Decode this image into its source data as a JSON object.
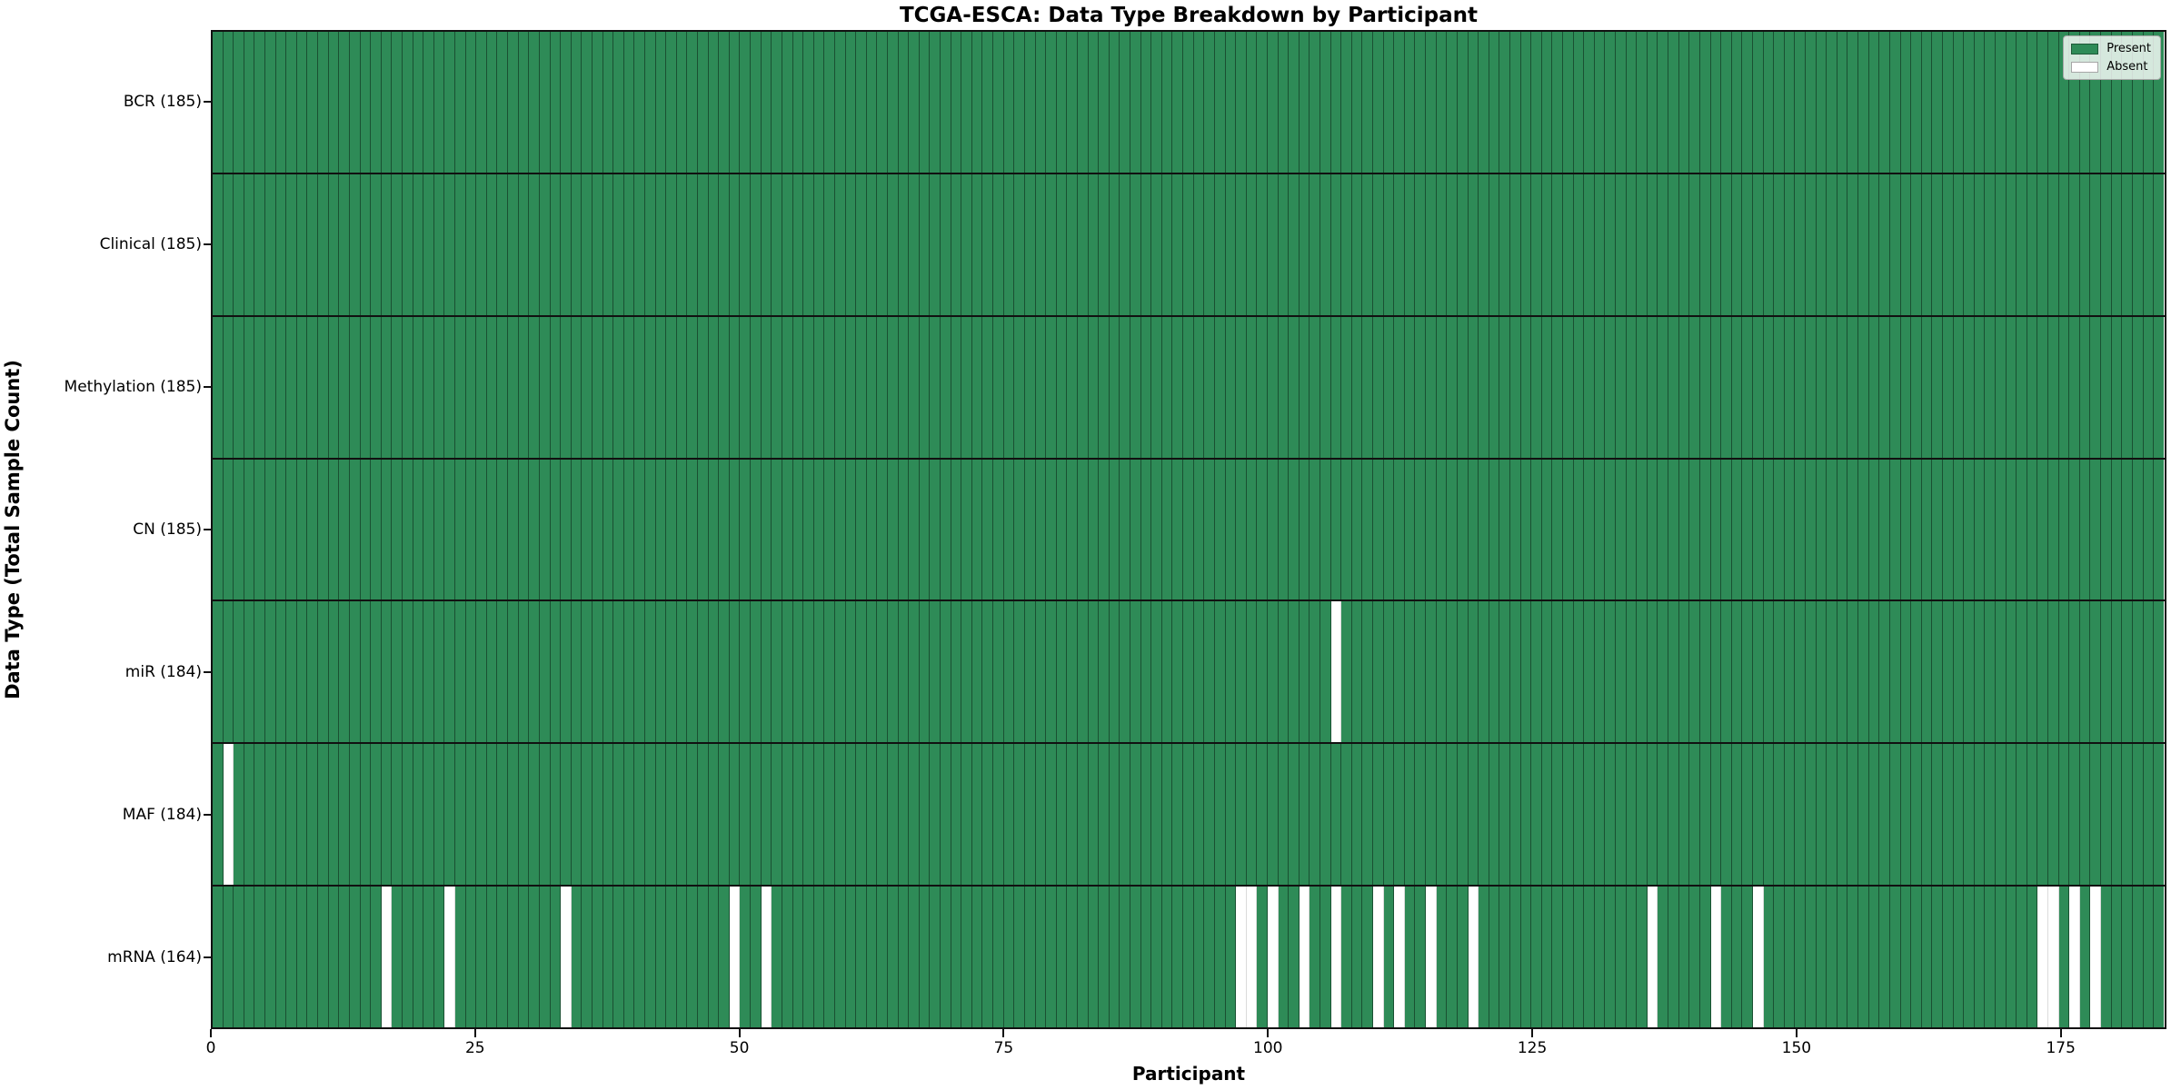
{
  "chart_data": {
    "type": "heatmap",
    "title": "TCGA-ESCA: Data Type Breakdown by Participant",
    "xlabel": "Participant",
    "ylabel": "Data Type (Total Sample Count)",
    "x_ticks": [
      0,
      25,
      50,
      75,
      100,
      125,
      150,
      175
    ],
    "xlim": [
      0,
      185
    ],
    "n_participants": 185,
    "grid": false,
    "legend": {
      "position": "upper right",
      "entries": [
        {
          "label": "Present",
          "color": "#2e8b57"
        },
        {
          "label": "Absent",
          "color": "#ffffff"
        }
      ]
    },
    "colors": {
      "present": "#2e8b57",
      "absent": "#ffffff",
      "cell_edge": "rgba(0,0,0,0.42)",
      "row_divider": "#111111"
    },
    "rows": [
      {
        "label": "BCR (185)",
        "data_type": "BCR",
        "total_sample_count": 185,
        "absent_participants": []
      },
      {
        "label": "Clinical (185)",
        "data_type": "Clinical",
        "total_sample_count": 185,
        "absent_participants": []
      },
      {
        "label": "Methylation (185)",
        "data_type": "Methylation",
        "total_sample_count": 185,
        "absent_participants": []
      },
      {
        "label": "CN (185)",
        "data_type": "CN",
        "total_sample_count": 185,
        "absent_participants": []
      },
      {
        "label": "miR (184)",
        "data_type": "miR",
        "total_sample_count": 184,
        "absent_participants": [
          106
        ]
      },
      {
        "label": "MAF (184)",
        "data_type": "MAF",
        "total_sample_count": 184,
        "absent_participants": [
          1
        ]
      },
      {
        "label": "mRNA (164)",
        "data_type": "mRNA",
        "total_sample_count": 164,
        "absent_participants": [
          16,
          22,
          33,
          49,
          52,
          97,
          98,
          100,
          103,
          106,
          110,
          112,
          115,
          119,
          136,
          142,
          146,
          173,
          174,
          176,
          178
        ]
      }
    ]
  }
}
